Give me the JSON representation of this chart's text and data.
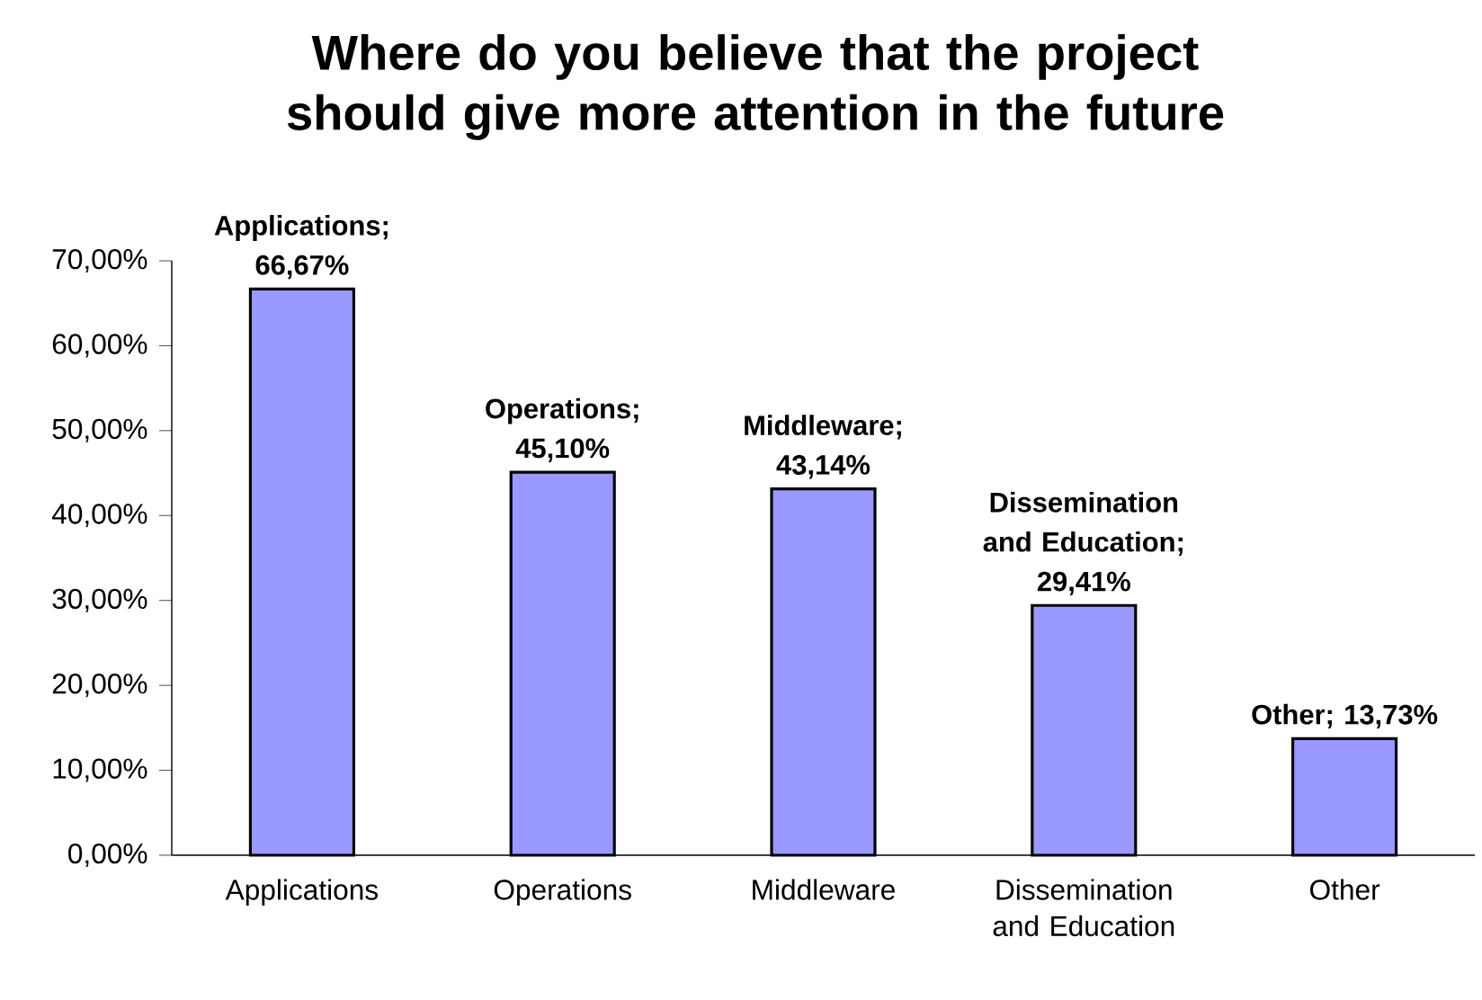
{
  "chart_data": {
    "type": "bar",
    "title": "Where do you believe that the project should give more attention in the future",
    "categories": [
      "Applications",
      "Operations",
      "Middleware",
      "Dissemination and Education",
      "Other"
    ],
    "values": [
      66.67,
      45.1,
      43.14,
      29.41,
      13.73
    ],
    "value_labels": [
      "Applications; 66,67%",
      "Operations; 45,10%",
      "Middleware; 43,14%",
      "Dissemination and Education; 29,41%",
      "Other; 13,73%"
    ],
    "color": "#9999ff",
    "ylim": [
      0,
      70
    ],
    "yticks": [
      {
        "value": 0,
        "label": "0,00%"
      },
      {
        "value": 10,
        "label": "10,00%"
      },
      {
        "value": 20,
        "label": "20,00%"
      },
      {
        "value": 30,
        "label": "30,00%"
      },
      {
        "value": 40,
        "label": "40,00%"
      },
      {
        "value": 50,
        "label": "50,00%"
      },
      {
        "value": 60,
        "label": "60,00%"
      },
      {
        "value": 70,
        "label": "70,00%"
      }
    ],
    "grid": false,
    "legend": false
  }
}
